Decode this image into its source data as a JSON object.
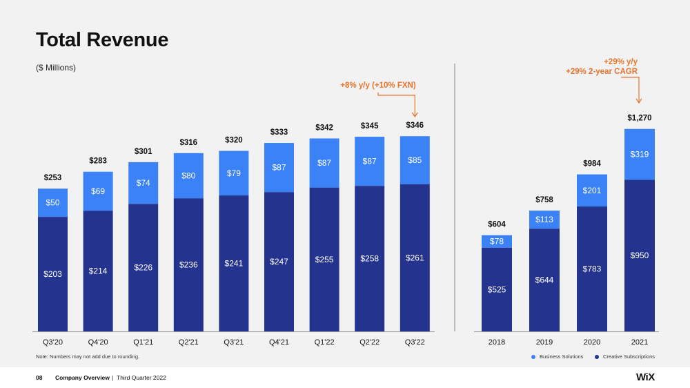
{
  "header": {
    "title": "Total Revenue",
    "subtitle": "($ Millions)"
  },
  "chart_data": [
    {
      "type": "bar",
      "stacked": true,
      "categories": [
        "Q3'20",
        "Q4'20",
        "Q1'21",
        "Q2'21",
        "Q3'21",
        "Q4'21",
        "Q1'22",
        "Q2'22",
        "Q3'22"
      ],
      "series": [
        {
          "name": "Creative Subscriptions",
          "values": [
            203,
            214,
            226,
            236,
            241,
            247,
            255,
            258,
            261
          ],
          "labels": [
            "$203",
            "$214",
            "$226",
            "$236",
            "$241",
            "$247",
            "$255",
            "$258",
            "$261"
          ],
          "color": "#24338e"
        },
        {
          "name": "Business Solutions",
          "values": [
            50,
            69,
            74,
            80,
            79,
            87,
            87,
            87,
            85
          ],
          "labels": [
            "$50",
            "$69",
            "$74",
            "$80",
            "$79",
            "$87",
            "$87",
            "$87",
            "$85"
          ],
          "color": "#3b82f6"
        }
      ],
      "totals": [
        253,
        283,
        301,
        316,
        320,
        333,
        342,
        345,
        346
      ],
      "total_labels": [
        "$253",
        "$283",
        "$301",
        "$316",
        "$320",
        "$333",
        "$342",
        "$345",
        "$346"
      ],
      "annotation": {
        "text": "+8% y/y (+10% FXN)",
        "category": "Q3'22",
        "color": "#e8742c"
      }
    },
    {
      "type": "bar",
      "stacked": true,
      "categories": [
        "2018",
        "2019",
        "2020",
        "2021"
      ],
      "series": [
        {
          "name": "Creative Subscriptions",
          "values": [
            525,
            644,
            783,
            950
          ],
          "labels": [
            "$525",
            "$644",
            "$783",
            "$950"
          ],
          "color": "#24338e"
        },
        {
          "name": "Business Solutions",
          "values": [
            78,
            113,
            201,
            319
          ],
          "labels": [
            "$78",
            "$113",
            "$201",
            "$319"
          ],
          "color": "#3b82f6"
        }
      ],
      "totals": [
        604,
        758,
        984,
        1270
      ],
      "total_labels": [
        "$604",
        "$758",
        "$984",
        "$1,270"
      ],
      "annotation": {
        "text_lines": [
          "+29% y/y",
          "+29% 2-year CAGR"
        ],
        "category": "2021",
        "color": "#e8742c"
      }
    }
  ],
  "note": "Note: Numbers may not add due to rounding.",
  "legend": [
    {
      "label": "Business Solutions",
      "color": "#3b82f6"
    },
    {
      "label": "Creative Subscriptions",
      "color": "#24338e"
    }
  ],
  "footer": {
    "page": "08",
    "section": "Company Overview",
    "separator": "|",
    "period": "Third Quarter 2022",
    "logo": "WiX"
  }
}
